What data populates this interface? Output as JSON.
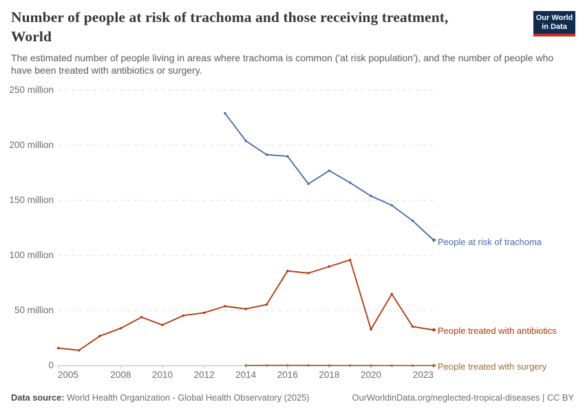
{
  "header": {
    "title": "Number of people at risk of trachoma and those receiving treatment, World",
    "title_lines": [
      "Number of people at risk of trachoma and those receiving treatment,",
      "World"
    ],
    "subtitle": "The estimated number of people living in areas where trachoma is common ('at risk population'), and the number of people who have been treated with antibiotics or surgery.",
    "logo": {
      "line1": "Our World",
      "line2": "in Data",
      "bg_color": "#102d4e",
      "bar_color": "#cd2d26"
    }
  },
  "chart_data": {
    "type": "line",
    "title": "Number of people at risk of trachoma and those receiving treatment, World",
    "xlabel": "",
    "ylabel": "",
    "unit": "million people",
    "xlim": [
      2005,
      2023
    ],
    "ylim": [
      0,
      250
    ],
    "grid": "horizontal dashed",
    "legend_position": "labels at line ends",
    "y_ticks": [
      {
        "value": 0,
        "label": "0"
      },
      {
        "value": 50,
        "label": "50 million"
      },
      {
        "value": 100,
        "label": "100 million"
      },
      {
        "value": 150,
        "label": "150 million"
      },
      {
        "value": 200,
        "label": "200 million"
      },
      {
        "value": 250,
        "label": "250 million"
      }
    ],
    "x_ticks": [
      {
        "year": 2005,
        "label": "2005"
      },
      {
        "year": 2008,
        "label": "2008"
      },
      {
        "year": 2010,
        "label": "2010"
      },
      {
        "year": 2012,
        "label": "2012"
      },
      {
        "year": 2014,
        "label": "2014"
      },
      {
        "year": 2016,
        "label": "2016"
      },
      {
        "year": 2018,
        "label": "2018"
      },
      {
        "year": 2020,
        "label": "2020"
      },
      {
        "year": 2023,
        "label": "2023"
      }
    ],
    "series": [
      {
        "name": "People at risk of trachoma",
        "color": "#4668a8",
        "x": [
          2013,
          2014,
          2015,
          2016,
          2017,
          2018,
          2019,
          2020,
          2021,
          2022,
          2023
        ],
        "values": [
          229,
          204,
          191.5,
          190,
          165,
          177,
          166,
          154,
          145.5,
          131.5,
          114
        ]
      },
      {
        "name": "People treated with antibiotics",
        "color": "#b13507",
        "x": [
          2005,
          2006,
          2007,
          2008,
          2009,
          2010,
          2011,
          2012,
          2013,
          2014,
          2015,
          2016,
          2017,
          2018,
          2019,
          2020,
          2021,
          2022,
          2023
        ],
        "values": [
          16,
          14,
          27,
          34,
          44,
          37,
          45.5,
          48,
          54,
          51.5,
          55.5,
          86,
          84,
          90,
          96,
          33,
          65,
          35.5,
          32.5
        ]
      },
      {
        "name": "People treated with surgery",
        "color": "#996d39",
        "x": [
          2014,
          2015,
          2016,
          2017,
          2018,
          2019,
          2020,
          2021,
          2022,
          2023
        ],
        "values": [
          0.2,
          0.3,
          0.3,
          0.3,
          0.2,
          0.2,
          0.1,
          0.1,
          0.1,
          0.1
        ]
      }
    ]
  },
  "footer": {
    "source_label": "Data source:",
    "source_text": " World Health Organization - Global Health Observatory (2025)",
    "rights_text": "OurWorldinData.org/neglected-tropical-diseases | CC BY"
  }
}
